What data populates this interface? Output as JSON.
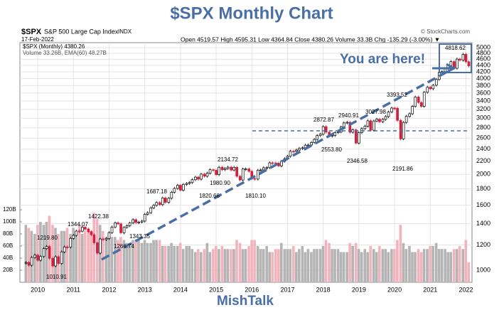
{
  "chart_data": {
    "type": "candlestick",
    "title": "$SPX Monthly Chart",
    "symbol": "$SPX",
    "name": "S&P 500 Large Cap Index",
    "exchange": "INDX",
    "date": "17-Feb-2022",
    "quote": "Open 4519.57 High 4595.31 Low 4364.84 Close 4380.26 Volume 33.3B Chg -135.29 (-3.00%) ▼",
    "credit": "© StockCharts.com",
    "legend": [
      "$SPX (Monthly) 4380.26",
      "Volume 33.26B, EMA(60) 48.27B"
    ],
    "note": "You are here!",
    "footer": "MishTalk",
    "x": [
      2009.67,
      2009.75,
      2009.83,
      2009.92,
      2010.0,
      2010.08,
      2010.17,
      2010.25,
      2010.33,
      2010.42,
      2010.5,
      2010.58,
      2010.67,
      2010.75,
      2010.83,
      2010.92,
      2011.0,
      2011.08,
      2011.17,
      2011.25,
      2011.33,
      2011.42,
      2011.5,
      2011.58,
      2011.67,
      2011.75,
      2011.83,
      2011.92,
      2012.0,
      2012.08,
      2012.17,
      2012.25,
      2012.33,
      2012.42,
      2012.5,
      2012.58,
      2012.67,
      2012.75,
      2012.83,
      2012.92,
      2013.0,
      2013.08,
      2013.17,
      2013.25,
      2013.33,
      2013.42,
      2013.5,
      2013.58,
      2013.67,
      2013.75,
      2013.83,
      2013.92,
      2014.0,
      2014.08,
      2014.17,
      2014.25,
      2014.33,
      2014.42,
      2014.5,
      2014.58,
      2014.67,
      2014.75,
      2014.83,
      2014.92,
      2015.0,
      2015.08,
      2015.17,
      2015.25,
      2015.33,
      2015.42,
      2015.5,
      2015.58,
      2015.67,
      2015.75,
      2015.83,
      2015.92,
      2016.0,
      2016.08,
      2016.17,
      2016.25,
      2016.33,
      2016.42,
      2016.5,
      2016.58,
      2016.67,
      2016.75,
      2016.83,
      2016.92,
      2017.0,
      2017.08,
      2017.17,
      2017.25,
      2017.33,
      2017.42,
      2017.5,
      2017.58,
      2017.67,
      2017.75,
      2017.83,
      2017.92,
      2018.0,
      2018.08,
      2018.17,
      2018.25,
      2018.33,
      2018.42,
      2018.5,
      2018.58,
      2018.67,
      2018.75,
      2018.83,
      2018.92,
      2019.0,
      2019.08,
      2019.17,
      2019.25,
      2019.33,
      2019.42,
      2019.5,
      2019.58,
      2019.67,
      2019.75,
      2019.83,
      2019.92,
      2020.0,
      2020.08,
      2020.17,
      2020.25,
      2020.33,
      2020.42,
      2020.5,
      2020.58,
      2020.67,
      2020.75,
      2020.83,
      2020.92,
      2021.0,
      2021.08,
      2021.17,
      2021.25,
      2021.33,
      2021.42,
      2021.5,
      2021.58,
      2021.67,
      2021.75,
      2021.83,
      2021.92,
      2022.0,
      2022.08
    ],
    "xlim": [
      2009.5,
      2022.17
    ],
    "xticks": [
      2010,
      2011,
      2012,
      2013,
      2014,
      2015,
      2016,
      2017,
      2018,
      2019,
      2020,
      2021,
      2022
    ],
    "ylim": [
      916,
      5185
    ],
    "yticks": [
      1000,
      1200,
      1400,
      1600,
      1800,
      2000,
      2200,
      2400,
      2600,
      2800,
      3000,
      3200,
      3400,
      3600,
      3800,
      4000,
      4200,
      4400,
      4600,
      4800,
      5000
    ],
    "log_y": true,
    "grid": true,
    "series": [
      {
        "name": "$SPX",
        "up_color": "#000000",
        "down_color": "#d0203c",
        "values": [
          1057,
          1036,
          1096,
          1115,
          1074,
          1104,
          1169,
          1187,
          1089,
          1031,
          1102,
          1049,
          1141,
          1183,
          1181,
          1258,
          1286,
          1327,
          1326,
          1364,
          1345,
          1321,
          1292,
          1219,
          1131,
          1253,
          1247,
          1258,
          1312,
          1366,
          1408,
          1398,
          1310,
          1362,
          1379,
          1407,
          1441,
          1412,
          1416,
          1426,
          1498,
          1515,
          1569,
          1598,
          1631,
          1606,
          1686,
          1633,
          1682,
          1757,
          1806,
          1848,
          1783,
          1859,
          1872,
          1884,
          1924,
          1960,
          1931,
          2003,
          1972,
          2018,
          2068,
          2059,
          1995,
          2105,
          2068,
          2086,
          2107,
          2063,
          2104,
          1972,
          1920,
          2079,
          2080,
          2044,
          1940,
          1932,
          2060,
          2065,
          2097,
          2099,
          2174,
          2171,
          2168,
          2126,
          2199,
          2239,
          2279,
          2364,
          2363,
          2384,
          2412,
          2423,
          2470,
          2472,
          2519,
          2575,
          2648,
          2674,
          2824,
          2714,
          2641,
          2648,
          2705,
          2718,
          2816,
          2902,
          2914,
          2712,
          2760,
          2507,
          2704,
          2784,
          2834,
          2946,
          2752,
          2942,
          2980,
          2926,
          2977,
          3038,
          3141,
          3231,
          3226,
          2954,
          2585,
          2912,
          3044,
          3100,
          3271,
          3500,
          3363,
          3270,
          3622,
          3756,
          3714,
          3811,
          3973,
          4181,
          4204,
          4298,
          4395,
          4523,
          4308,
          4605,
          4567,
          4766,
          4516,
          4380
        ]
      }
    ],
    "volume": {
      "name": "Volume",
      "up_color": "#b4b4b4",
      "down_color": "#f2b3bc",
      "ylim": [
        0,
        120
      ],
      "yticks": [
        {
          "value": 20,
          "label": "20B"
        },
        {
          "value": 40,
          "label": "40B"
        },
        {
          "value": 60,
          "label": "60B"
        },
        {
          "value": 80,
          "label": "80B"
        },
        {
          "value": 100,
          "label": "100B"
        },
        {
          "value": 120,
          "label": "120B"
        }
      ],
      "values": [
        95,
        90,
        85,
        80,
        95,
        100,
        95,
        100,
        110,
        95,
        90,
        80,
        85,
        85,
        90,
        80,
        90,
        85,
        95,
        80,
        85,
        90,
        85,
        115,
        105,
        95,
        85,
        75,
        80,
        75,
        75,
        70,
        75,
        70,
        65,
        60,
        70,
        70,
        70,
        65,
        70,
        65,
        65,
        70,
        70,
        70,
        60,
        60,
        60,
        65,
        60,
        60,
        65,
        55,
        60,
        60,
        55,
        50,
        55,
        50,
        55,
        65,
        50,
        55,
        60,
        55,
        60,
        55,
        55,
        55,
        55,
        70,
        65,
        55,
        55,
        60,
        70,
        70,
        60,
        55,
        55,
        60,
        50,
        50,
        55,
        55,
        65,
        55,
        55,
        55,
        60,
        50,
        55,
        60,
        50,
        55,
        50,
        55,
        55,
        55,
        60,
        70,
        65,
        55,
        55,
        55,
        50,
        50,
        50,
        65,
        60,
        65,
        55,
        50,
        55,
        50,
        60,
        55,
        50,
        60,
        55,
        55,
        50,
        55,
        55,
        70,
        95,
        65,
        55,
        60,
        50,
        50,
        55,
        50,
        55,
        55,
        60,
        60,
        65,
        55,
        55,
        55,
        50,
        50,
        55,
        55,
        60,
        55,
        70,
        33.3
      ]
    },
    "annotations": [
      "1219.80",
      "1010.91",
      "1344.07",
      "1422.38",
      "1343.35",
      "1266.74",
      "1687.18",
      "1820.66",
      "1980.90",
      "2134.72",
      "1810.10",
      "2872.87",
      "2940.91",
      "2553.80",
      "2346.58",
      "3027.98",
      "3393.52",
      "2191.86",
      "4818.62"
    ]
  }
}
